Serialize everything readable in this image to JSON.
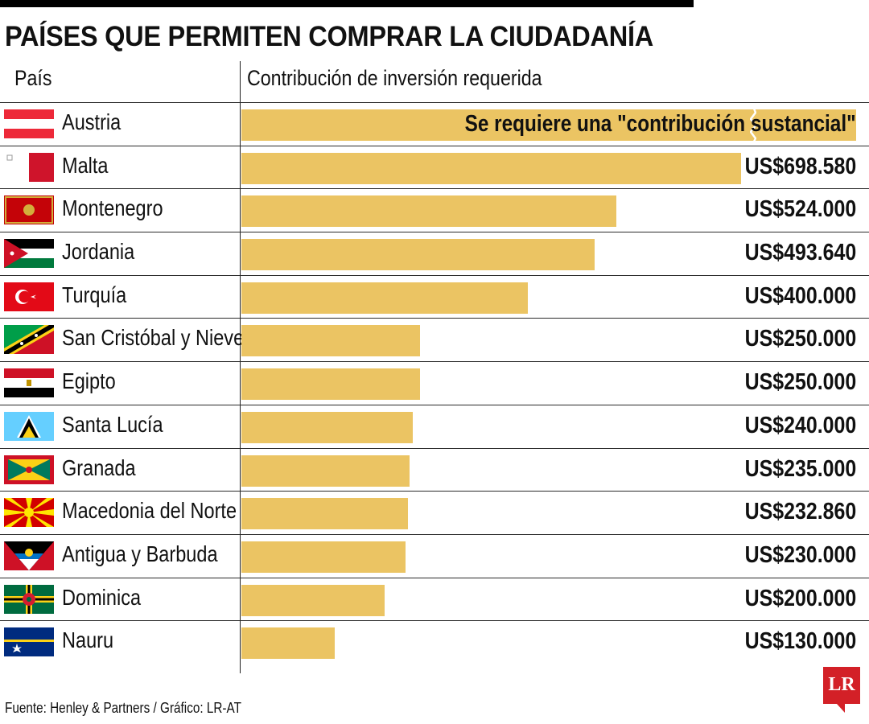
{
  "title": "PAÍSES QUE PERMITEN COMPRAR LA CIUDADANÍA",
  "header": {
    "country": "País",
    "value": "Contribución de inversión requerida"
  },
  "source": "Fuente: Henley & Partners / Gráfico: LR-AT",
  "logo": "LR",
  "colors": {
    "bar": "#ebc463",
    "logo": "#d32027"
  },
  "chart_data": {
    "type": "bar",
    "orientation": "horizontal",
    "title": "PAÍSES QUE PERMITEN COMPRAR LA CIUDADANÍA",
    "xlabel": "Contribución de inversión requerida",
    "ylabel": "País",
    "xlim": [
      0,
      720000
    ],
    "unit": "US$",
    "rows": [
      {
        "country": "Austria",
        "flag": "austria-flag-icon",
        "value": null,
        "label": "",
        "note": "Se requiere una \"contribución sustancial\""
      },
      {
        "country": "Malta",
        "flag": "malta-flag-icon",
        "value": 698580,
        "label": "US$698.580"
      },
      {
        "country": "Montenegro",
        "flag": "montenegro-flag-icon",
        "value": 524000,
        "label": "US$524.000"
      },
      {
        "country": "Jordania",
        "flag": "jordan-flag-icon",
        "value": 493640,
        "label": "US$493.640"
      },
      {
        "country": "Turquía",
        "flag": "turkey-flag-icon",
        "value": 400000,
        "label": "US$400.000"
      },
      {
        "country": "San Cristóbal y Nieves",
        "flag": "saint-kitts-flag-icon",
        "value": 250000,
        "label": "US$250.000"
      },
      {
        "country": "Egipto",
        "flag": "egypt-flag-icon",
        "value": 250000,
        "label": "US$250.000"
      },
      {
        "country": "Santa Lucía",
        "flag": "saint-lucia-flag-icon",
        "value": 240000,
        "label": "US$240.000"
      },
      {
        "country": "Granada",
        "flag": "grenada-flag-icon",
        "value": 235000,
        "label": "US$235.000"
      },
      {
        "country": "Macedonia del Norte",
        "flag": "north-macedonia-flag-icon",
        "value": 232860,
        "label": "US$232.860"
      },
      {
        "country": "Antigua y Barbuda",
        "flag": "antigua-flag-icon",
        "value": 230000,
        "label": "US$230.000"
      },
      {
        "country": "Dominica",
        "flag": "dominica-flag-icon",
        "value": 200000,
        "label": "US$200.000"
      },
      {
        "country": "Nauru",
        "flag": "nauru-flag-icon",
        "value": 130000,
        "label": "US$130.000"
      }
    ]
  }
}
